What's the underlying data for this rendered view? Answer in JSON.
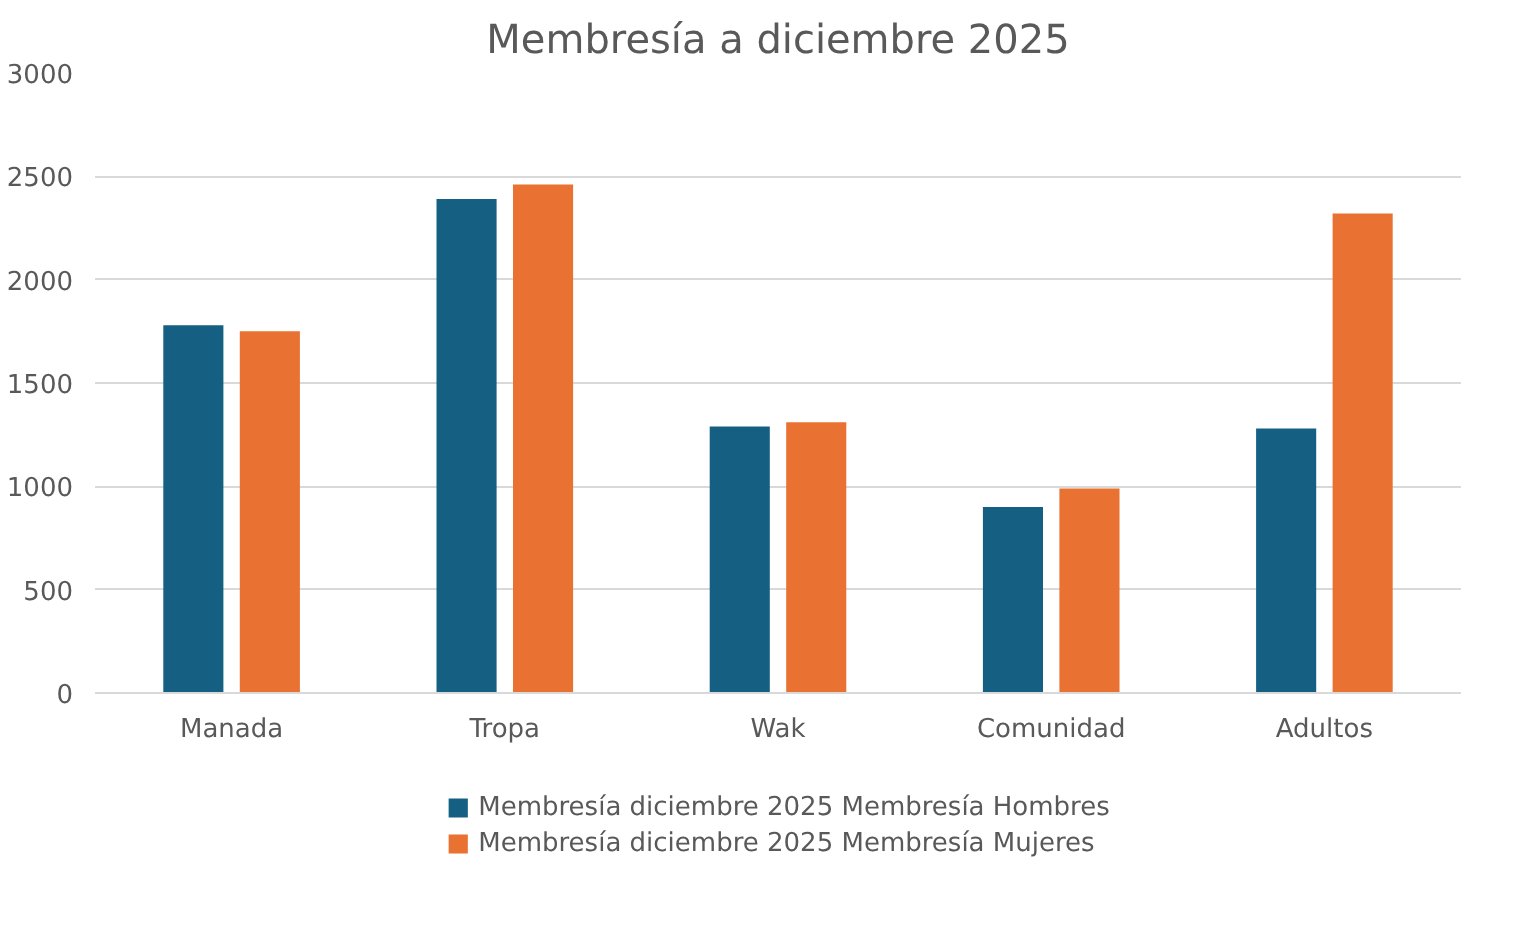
{
  "chart_data": {
    "type": "bar",
    "title": "Membresía a diciembre 2025",
    "categories": [
      "Manada",
      "Tropa",
      "Wak",
      "Comunidad",
      "Adultos"
    ],
    "series": [
      {
        "name": "Membresía diciembre 2025 Membresía Hombres",
        "color": "#156082",
        "values": [
          1780,
          2390,
          1290,
          900,
          1280
        ]
      },
      {
        "name": "Membresía diciembre 2025 Membresía Mujeres",
        "color": "#e97132",
        "values": [
          1750,
          2460,
          1310,
          990,
          2320
        ]
      }
    ],
    "ylim": [
      0,
      3000
    ],
    "yticks": [
      0,
      500,
      1000,
      1500,
      2000,
      2500,
      3000
    ],
    "grid": "y",
    "legend": "bottom"
  }
}
